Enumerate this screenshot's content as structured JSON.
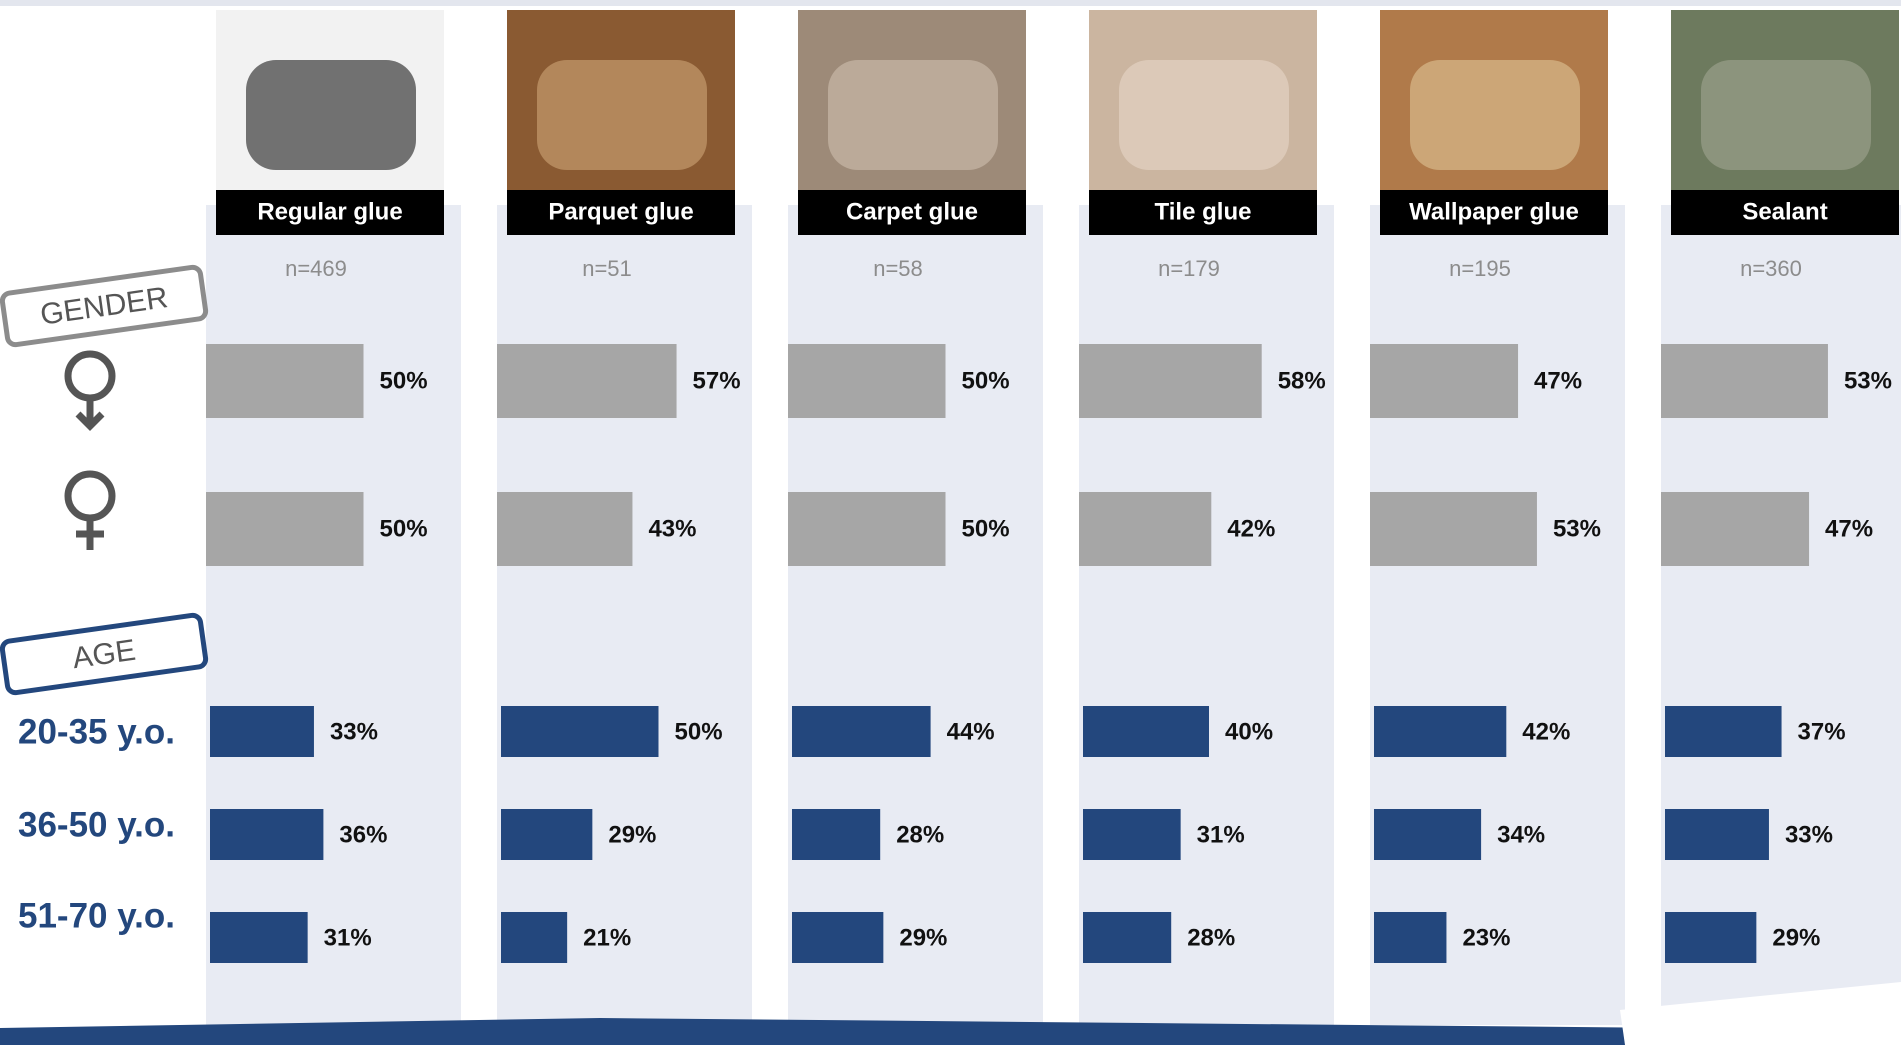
{
  "labels": {
    "gender": "GENDER",
    "age": "AGE",
    "age_groups": [
      "20-35 y.o.",
      "36-50 y.o.",
      "51-70 y.o."
    ]
  },
  "chart_data": [
    {
      "type": "bar",
      "title": "Regular glue",
      "subtitle": "n=469",
      "xlim": [
        0,
        100
      ],
      "gender": {
        "color": "#a6a6a6",
        "values": [
          50,
          50
        ],
        "value_labels": [
          "50%",
          "50%"
        ]
      },
      "age": {
        "color": "#23477d",
        "values": [
          33,
          36,
          31
        ],
        "value_labels": [
          "33%",
          "36%",
          "31%"
        ]
      }
    },
    {
      "type": "bar",
      "title": "Parquet glue",
      "subtitle": "n=51",
      "xlim": [
        0,
        100
      ],
      "gender": {
        "color": "#a6a6a6",
        "values": [
          57,
          43
        ],
        "value_labels": [
          "57%",
          "43%"
        ]
      },
      "age": {
        "color": "#23477d",
        "values": [
          50,
          29,
          21
        ],
        "value_labels": [
          "50%",
          "29%",
          "21%"
        ]
      }
    },
    {
      "type": "bar",
      "title": "Carpet glue",
      "subtitle": "n=58",
      "xlim": [
        0,
        100
      ],
      "gender": {
        "color": "#a6a6a6",
        "values": [
          50,
          50
        ],
        "value_labels": [
          "50%",
          "50%"
        ]
      },
      "age": {
        "color": "#23477d",
        "values": [
          44,
          28,
          29
        ],
        "value_labels": [
          "44%",
          "28%",
          "29%"
        ]
      }
    },
    {
      "type": "bar",
      "title": "Tile glue",
      "subtitle": "n=179",
      "xlim": [
        0,
        100
      ],
      "gender": {
        "color": "#a6a6a6",
        "values": [
          58,
          42
        ],
        "value_labels": [
          "58%",
          "42%"
        ]
      },
      "age": {
        "color": "#23477d",
        "values": [
          40,
          31,
          28
        ],
        "value_labels": [
          "40%",
          "31%",
          "28%"
        ]
      }
    },
    {
      "type": "bar",
      "title": "Wallpaper glue",
      "subtitle": "n=195",
      "xlim": [
        0,
        100
      ],
      "gender": {
        "color": "#a6a6a6",
        "values": [
          47,
          53
        ],
        "value_labels": [
          "47%",
          "53%"
        ]
      },
      "age": {
        "color": "#23477d",
        "values": [
          42,
          34,
          23
        ],
        "value_labels": [
          "42%",
          "34%",
          "23%"
        ]
      }
    },
    {
      "type": "bar",
      "title": "Sealant",
      "subtitle": "n=360",
      "xlim": [
        0,
        100
      ],
      "gender": {
        "color": "#a6a6a6",
        "values": [
          53,
          47
        ],
        "value_labels": [
          "53%",
          "47%"
        ]
      },
      "age": {
        "color": "#23477d",
        "values": [
          37,
          33,
          29
        ],
        "value_labels": [
          "37%",
          "33%",
          "29%"
        ]
      }
    }
  ]
}
